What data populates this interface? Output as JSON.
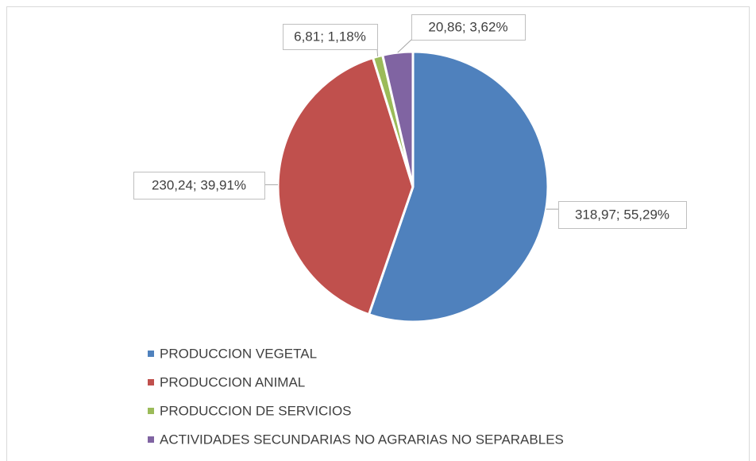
{
  "chart_data": {
    "type": "pie",
    "categories": [
      "PRODUCCION VEGETAL",
      "PRODUCCION ANIMAL",
      "PRODUCCION DE SERVICIOS",
      "ACTIVIDADES SECUNDARIAS NO AGRARIAS NO SEPARABLES"
    ],
    "values": [
      318.97,
      230.24,
      6.81,
      20.86
    ],
    "value_labels": [
      "318,97; 55,29%",
      "230,24; 39,91%",
      "6,81; 1,18%",
      "20,86; 3,62%"
    ],
    "colors": [
      "#4f81bd",
      "#c0504d",
      "#9bbb59",
      "#8064a2"
    ],
    "legend": "bottom"
  }
}
